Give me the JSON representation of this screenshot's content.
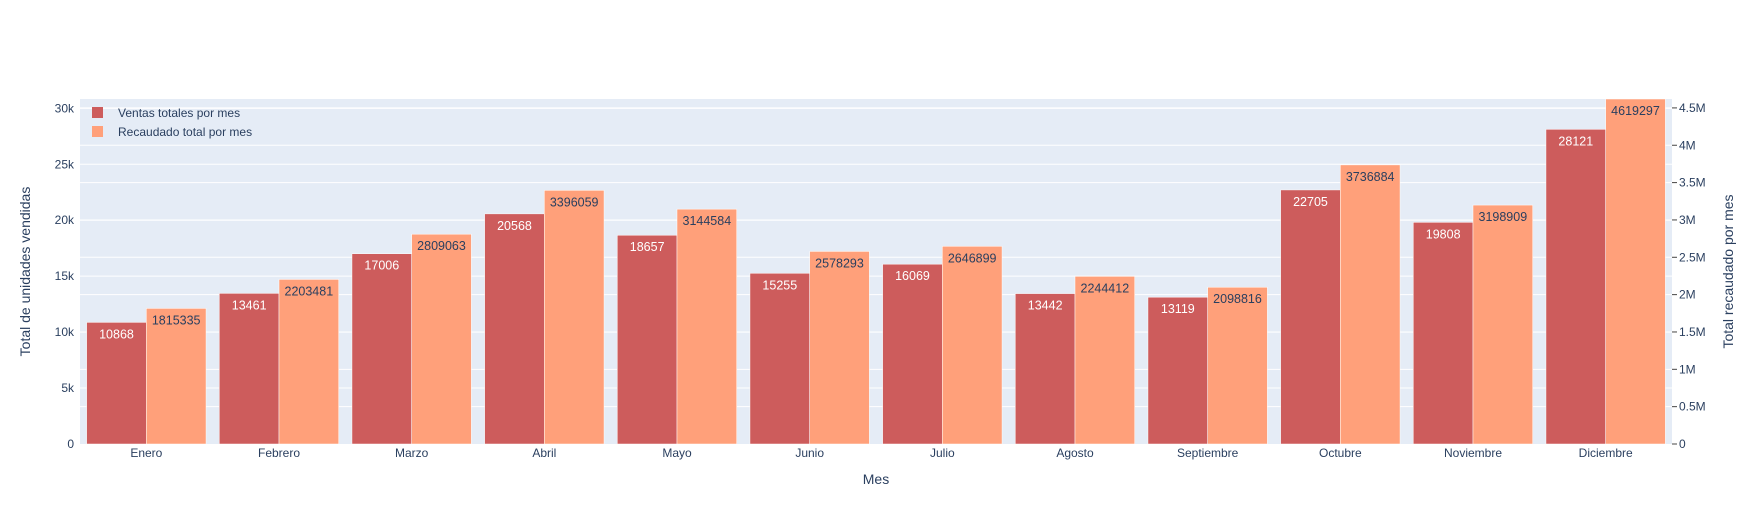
{
  "chart_data": {
    "type": "bar",
    "title": "",
    "xlabel": "Mes",
    "ylabel_left": "Total de unidades vendidas",
    "ylabel_right": "Total recaudado por mes",
    "categories": [
      "Enero",
      "Febrero",
      "Marzo",
      "Abril",
      "Mayo",
      "Junio",
      "Julio",
      "Agosto",
      "Septiembre",
      "Octubre",
      "Noviembre",
      "Diciembre"
    ],
    "series": [
      {
        "name": "Ventas totales por mes",
        "axis": "left",
        "color": "#cd5c5c",
        "label_color": "#ffffff",
        "values": [
          10868,
          13461,
          17006,
          20568,
          18657,
          15255,
          16069,
          13442,
          13119,
          22705,
          19808,
          28121
        ]
      },
      {
        "name": "Recaudado total por mes",
        "axis": "right",
        "color": "#ffa07a",
        "label_color": "#2a3f5f",
        "values": [
          1815335,
          2203481,
          2809063,
          3396059,
          3144584,
          2578293,
          2646899,
          2244412,
          2098816,
          3736884,
          3198909,
          4619297
        ]
      }
    ],
    "ylim_left": [
      0,
      30833
    ],
    "yticks_left": [
      0,
      5000,
      10000,
      15000,
      20000,
      25000,
      30000
    ],
    "ytick_labels_left": [
      "0",
      "5k",
      "10k",
      "15k",
      "20k",
      "25k",
      "30k"
    ],
    "ylim_right": [
      0,
      4619297
    ],
    "yticks_right": [
      0,
      500000,
      1000000,
      1500000,
      2000000,
      2500000,
      3000000,
      3500000,
      4000000,
      4500000
    ],
    "ytick_labels_right": [
      "0",
      "0.5M",
      "1M",
      "1.5M",
      "2M",
      "2.5M",
      "3M",
      "3.5M",
      "4M",
      "4.5M"
    ],
    "legend_position": "top-left",
    "grid": true,
    "plot_background": "#e5ecf6",
    "text_color": "#2a3f5f"
  }
}
